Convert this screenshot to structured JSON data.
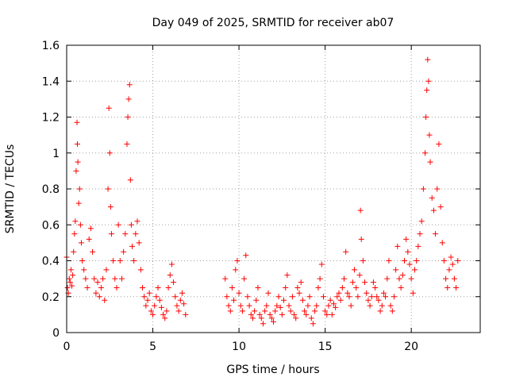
{
  "chart_data": {
    "type": "scatter",
    "title": "Day 049 of 2025, SRMTID for receiver ab07",
    "xlabel": "GPS time / hours",
    "ylabel": "SRMTID / TECUs",
    "xlim": [
      0,
      24
    ],
    "ylim": [
      0,
      1.6
    ],
    "xticks": [
      0,
      5,
      10,
      15,
      20
    ],
    "xtick_labels": [
      "0",
      "5",
      "10",
      "15",
      "20"
    ],
    "yticks": [
      0,
      0.2,
      0.4,
      0.6,
      0.8,
      1.0,
      1.2,
      1.4,
      1.6
    ],
    "ytick_labels": [
      "0",
      "0.2",
      "0.4",
      "0.6",
      "0.8",
      "1",
      "1.2",
      "1.4",
      "1.6"
    ],
    "grid": true,
    "marker": "plus",
    "color": "#ff0000",
    "series": [
      {
        "name": "SRMTID",
        "points": [
          [
            0.0,
            0.42
          ],
          [
            0.05,
            0.25
          ],
          [
            0.1,
            0.22
          ],
          [
            0.15,
            0.3
          ],
          [
            0.2,
            0.28
          ],
          [
            0.25,
            0.35
          ],
          [
            0.3,
            0.26
          ],
          [
            0.35,
            0.32
          ],
          [
            0.4,
            0.45
          ],
          [
            0.45,
            0.55
          ],
          [
            0.5,
            0.62
          ],
          [
            0.55,
            0.9
          ],
          [
            0.6,
            1.17
          ],
          [
            0.62,
            1.05
          ],
          [
            0.65,
            0.95
          ],
          [
            0.7,
            0.72
          ],
          [
            0.75,
            0.8
          ],
          [
            0.8,
            0.6
          ],
          [
            0.85,
            0.5
          ],
          [
            0.9,
            0.4
          ],
          [
            1.0,
            0.35
          ],
          [
            1.1,
            0.3
          ],
          [
            1.2,
            0.25
          ],
          [
            1.3,
            0.52
          ],
          [
            1.4,
            0.58
          ],
          [
            1.5,
            0.45
          ],
          [
            1.6,
            0.3
          ],
          [
            1.7,
            0.22
          ],
          [
            1.8,
            0.28
          ],
          [
            1.9,
            0.2
          ],
          [
            2.0,
            0.25
          ],
          [
            2.1,
            0.3
          ],
          [
            2.2,
            0.18
          ],
          [
            2.3,
            0.35
          ],
          [
            2.4,
            0.8
          ],
          [
            2.45,
            1.25
          ],
          [
            2.5,
            1.0
          ],
          [
            2.55,
            0.7
          ],
          [
            2.6,
            0.55
          ],
          [
            2.7,
            0.4
          ],
          [
            2.8,
            0.3
          ],
          [
            2.9,
            0.25
          ],
          [
            3.0,
            0.6
          ],
          [
            3.1,
            0.4
          ],
          [
            3.2,
            0.3
          ],
          [
            3.3,
            0.45
          ],
          [
            3.4,
            0.55
          ],
          [
            3.5,
            1.05
          ],
          [
            3.55,
            1.2
          ],
          [
            3.6,
            1.3
          ],
          [
            3.65,
            1.38
          ],
          [
            3.7,
            0.85
          ],
          [
            3.75,
            0.6
          ],
          [
            3.8,
            0.48
          ],
          [
            3.9,
            0.4
          ],
          [
            4.0,
            0.55
          ],
          [
            4.1,
            0.62
          ],
          [
            4.2,
            0.5
          ],
          [
            4.3,
            0.35
          ],
          [
            4.4,
            0.25
          ],
          [
            4.5,
            0.2
          ],
          [
            4.6,
            0.15
          ],
          [
            4.7,
            0.18
          ],
          [
            4.8,
            0.22
          ],
          [
            4.9,
            0.12
          ],
          [
            5.0,
            0.1
          ],
          [
            5.1,
            0.15
          ],
          [
            5.2,
            0.2
          ],
          [
            5.3,
            0.25
          ],
          [
            5.4,
            0.18
          ],
          [
            5.5,
            0.14
          ],
          [
            5.6,
            0.1
          ],
          [
            5.7,
            0.08
          ],
          [
            5.8,
            0.12
          ],
          [
            5.9,
            0.25
          ],
          [
            6.0,
            0.32
          ],
          [
            6.1,
            0.38
          ],
          [
            6.2,
            0.28
          ],
          [
            6.3,
            0.2
          ],
          [
            6.4,
            0.15
          ],
          [
            6.5,
            0.12
          ],
          [
            6.6,
            0.18
          ],
          [
            6.7,
            0.22
          ],
          [
            6.8,
            0.16
          ],
          [
            6.9,
            0.1
          ],
          [
            9.2,
            0.3
          ],
          [
            9.3,
            0.2
          ],
          [
            9.4,
            0.15
          ],
          [
            9.5,
            0.12
          ],
          [
            9.6,
            0.25
          ],
          [
            9.7,
            0.18
          ],
          [
            9.8,
            0.35
          ],
          [
            9.9,
            0.4
          ],
          [
            10.0,
            0.22
          ],
          [
            10.1,
            0.15
          ],
          [
            10.2,
            0.12
          ],
          [
            10.3,
            0.3
          ],
          [
            10.4,
            0.43
          ],
          [
            10.5,
            0.2
          ],
          [
            10.6,
            0.15
          ],
          [
            10.7,
            0.1
          ],
          [
            10.8,
            0.08
          ],
          [
            10.9,
            0.12
          ],
          [
            11.0,
            0.18
          ],
          [
            11.1,
            0.25
          ],
          [
            11.2,
            0.1
          ],
          [
            11.3,
            0.08
          ],
          [
            11.4,
            0.05
          ],
          [
            11.5,
            0.12
          ],
          [
            11.6,
            0.15
          ],
          [
            11.7,
            0.22
          ],
          [
            11.8,
            0.1
          ],
          [
            11.9,
            0.08
          ],
          [
            12.0,
            0.06
          ],
          [
            12.1,
            0.12
          ],
          [
            12.2,
            0.15
          ],
          [
            12.3,
            0.2
          ],
          [
            12.4,
            0.14
          ],
          [
            12.5,
            0.1
          ],
          [
            12.6,
            0.18
          ],
          [
            12.7,
            0.25
          ],
          [
            12.8,
            0.32
          ],
          [
            12.9,
            0.15
          ],
          [
            13.0,
            0.12
          ],
          [
            13.1,
            0.2
          ],
          [
            13.2,
            0.1
          ],
          [
            13.3,
            0.08
          ],
          [
            13.4,
            0.25
          ],
          [
            13.5,
            0.22
          ],
          [
            13.6,
            0.28
          ],
          [
            13.7,
            0.18
          ],
          [
            13.8,
            0.12
          ],
          [
            13.9,
            0.1
          ],
          [
            14.0,
            0.15
          ],
          [
            14.1,
            0.2
          ],
          [
            14.2,
            0.08
          ],
          [
            14.3,
            0.05
          ],
          [
            14.4,
            0.12
          ],
          [
            14.5,
            0.15
          ],
          [
            14.6,
            0.25
          ],
          [
            14.7,
            0.3
          ],
          [
            14.8,
            0.38
          ],
          [
            14.9,
            0.2
          ],
          [
            15.0,
            0.12
          ],
          [
            15.1,
            0.1
          ],
          [
            15.2,
            0.15
          ],
          [
            15.3,
            0.18
          ],
          [
            15.4,
            0.1
          ],
          [
            15.5,
            0.16
          ],
          [
            15.6,
            0.14
          ],
          [
            15.7,
            0.2
          ],
          [
            15.8,
            0.22
          ],
          [
            15.9,
            0.18
          ],
          [
            16.0,
            0.25
          ],
          [
            16.1,
            0.3
          ],
          [
            16.2,
            0.45
          ],
          [
            16.3,
            0.22
          ],
          [
            16.4,
            0.2
          ],
          [
            16.5,
            0.15
          ],
          [
            16.6,
            0.28
          ],
          [
            16.7,
            0.35
          ],
          [
            16.8,
            0.25
          ],
          [
            16.9,
            0.2
          ],
          [
            17.0,
            0.32
          ],
          [
            17.05,
            0.68
          ],
          [
            17.1,
            0.52
          ],
          [
            17.2,
            0.4
          ],
          [
            17.3,
            0.28
          ],
          [
            17.4,
            0.22
          ],
          [
            17.5,
            0.18
          ],
          [
            17.6,
            0.15
          ],
          [
            17.7,
            0.2
          ],
          [
            17.8,
            0.28
          ],
          [
            17.9,
            0.25
          ],
          [
            18.0,
            0.2
          ],
          [
            18.1,
            0.18
          ],
          [
            18.2,
            0.12
          ],
          [
            18.3,
            0.15
          ],
          [
            18.4,
            0.22
          ],
          [
            18.5,
            0.2
          ],
          [
            18.6,
            0.3
          ],
          [
            18.7,
            0.4
          ],
          [
            18.8,
            0.15
          ],
          [
            18.9,
            0.12
          ],
          [
            19.0,
            0.2
          ],
          [
            19.1,
            0.35
          ],
          [
            19.2,
            0.48
          ],
          [
            19.3,
            0.3
          ],
          [
            19.4,
            0.25
          ],
          [
            19.5,
            0.32
          ],
          [
            19.6,
            0.4
          ],
          [
            19.7,
            0.52
          ],
          [
            19.8,
            0.45
          ],
          [
            19.9,
            0.38
          ],
          [
            20.0,
            0.3
          ],
          [
            20.1,
            0.22
          ],
          [
            20.2,
            0.35
          ],
          [
            20.3,
            0.4
          ],
          [
            20.4,
            0.48
          ],
          [
            20.5,
            0.55
          ],
          [
            20.6,
            0.62
          ],
          [
            20.7,
            0.8
          ],
          [
            20.8,
            1.0
          ],
          [
            20.85,
            1.2
          ],
          [
            20.9,
            1.35
          ],
          [
            20.95,
            1.52
          ],
          [
            21.0,
            1.4
          ],
          [
            21.05,
            1.1
          ],
          [
            21.1,
            0.95
          ],
          [
            21.2,
            0.75
          ],
          [
            21.3,
            0.68
          ],
          [
            21.4,
            0.55
          ],
          [
            21.5,
            0.8
          ],
          [
            21.6,
            1.05
          ],
          [
            21.7,
            0.7
          ],
          [
            21.8,
            0.5
          ],
          [
            21.9,
            0.4
          ],
          [
            22.0,
            0.3
          ],
          [
            22.1,
            0.25
          ],
          [
            22.2,
            0.35
          ],
          [
            22.3,
            0.42
          ],
          [
            22.4,
            0.38
          ],
          [
            22.5,
            0.3
          ],
          [
            22.6,
            0.25
          ],
          [
            22.7,
            0.4
          ]
        ]
      }
    ]
  }
}
